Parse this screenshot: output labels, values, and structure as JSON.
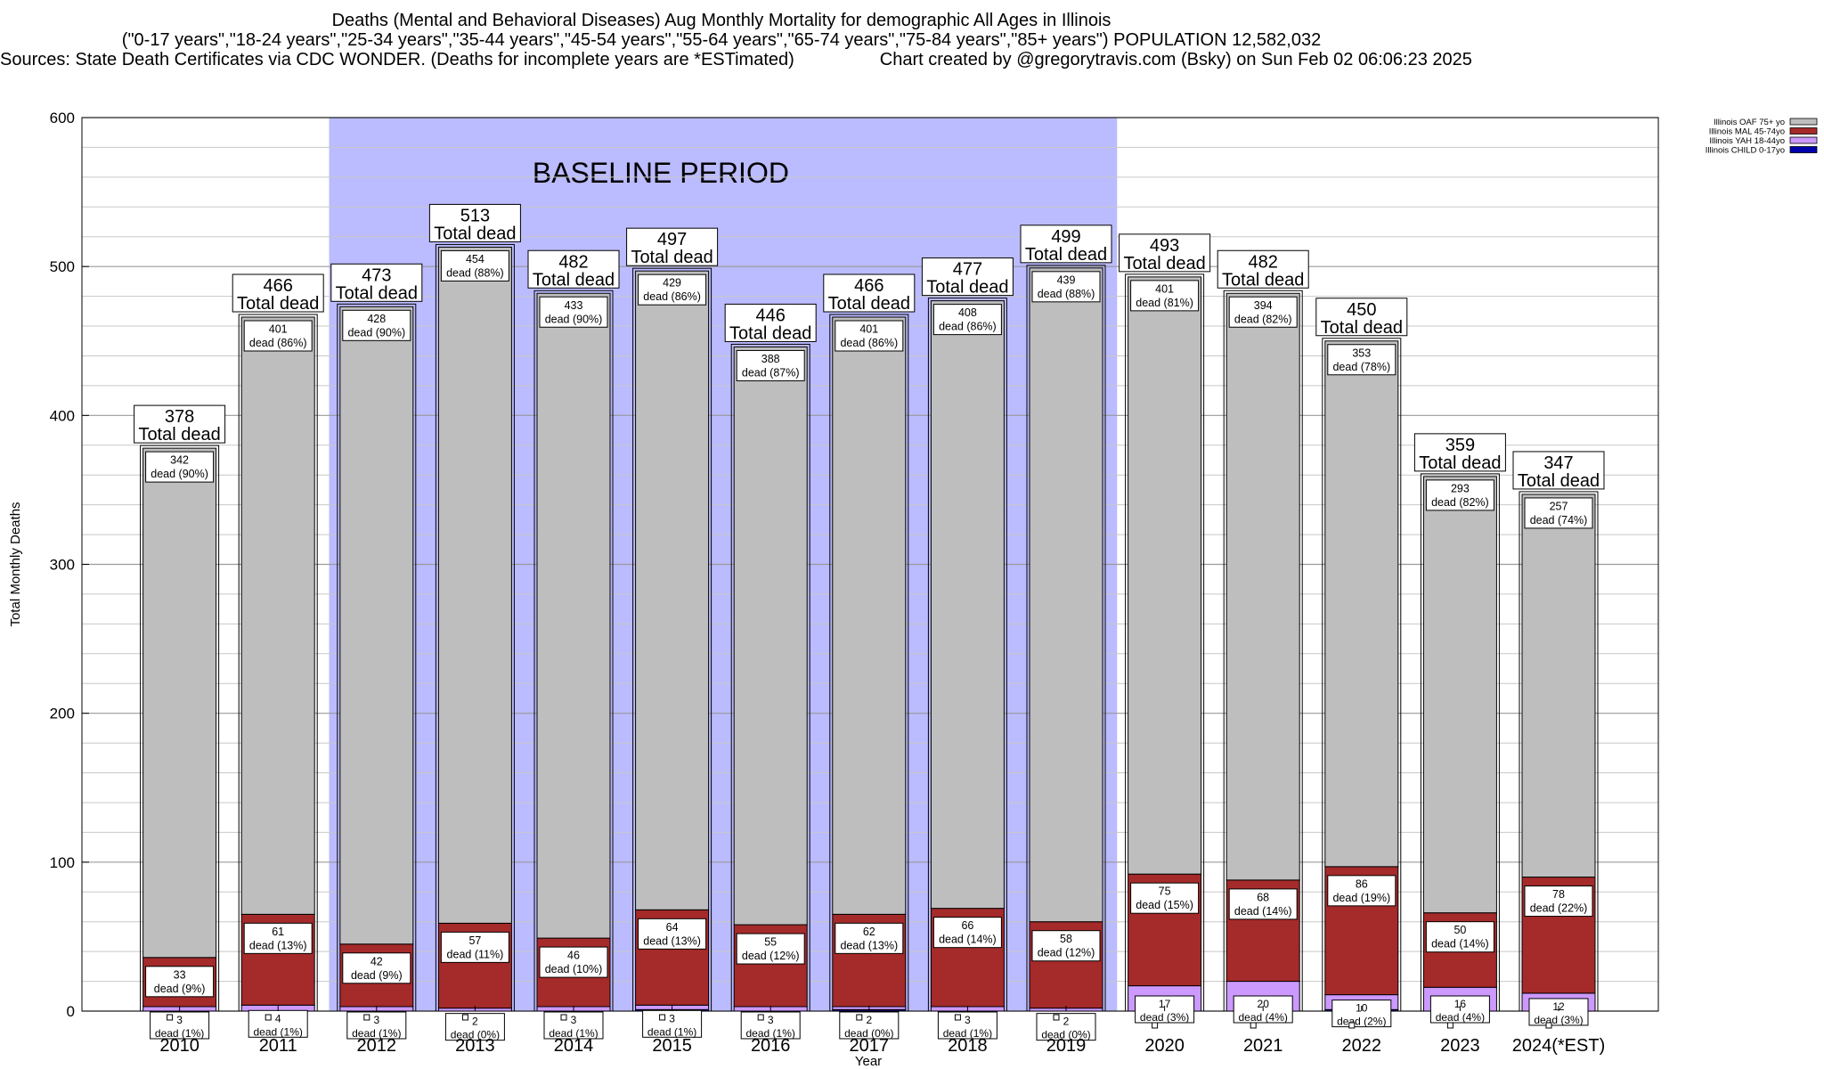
{
  "header": {
    "title_line1": "Deaths (Mental and Behavioral Diseases) Aug Monthly Mortality for demographic All Ages in Illinois",
    "title_line2": "(\"0-17 years\",\"18-24 years\",\"25-34 years\",\"35-44 years\",\"45-54 years\",\"55-64 years\",\"65-74 years\",\"75-84 years\",\"85+ years\") POPULATION 12,582,032",
    "sources": "Sources: State Death Certificates via CDC WONDER. (Deaths for incomplete years are *ESTimated)",
    "credit": "Chart created by @gregorytravis.com (Bsky) on Sun Feb 02 06:06:23 2025"
  },
  "chart_data": {
    "type": "bar",
    "stacked": true,
    "xlabel": "Year",
    "ylabel": "Total Monthly Deaths",
    "ylim": [
      0,
      600
    ],
    "yticks": [
      0,
      100,
      200,
      300,
      400,
      500,
      600
    ],
    "grid": true,
    "legend_position": "top-right",
    "baseline": {
      "label": "BASELINE PERIOD",
      "from": "2012",
      "to": "2019",
      "color": "#bbbbff"
    },
    "categories": [
      "2010",
      "2011",
      "2012",
      "2013",
      "2014",
      "2015",
      "2016",
      "2017",
      "2018",
      "2019",
      "2020",
      "2021",
      "2022",
      "2023",
      "2024(*EST)"
    ],
    "totals": [
      378,
      466,
      473,
      513,
      482,
      497,
      446,
      466,
      477,
      499,
      493,
      482,
      450,
      359,
      347
    ],
    "total_suffix": "Total dead",
    "dead_word": "dead",
    "series": [
      {
        "name": "Illinois CHILD 0-17yo",
        "color": "#0000aa",
        "values": [
          0,
          0,
          0,
          0,
          0,
          1,
          0,
          1,
          0,
          0,
          0,
          0,
          1,
          0,
          0
        ],
        "percents": []
      },
      {
        "name": "Illinois YAH 18-44yo",
        "color": "#cc99ff",
        "values": [
          3,
          4,
          3,
          2,
          3,
          3,
          3,
          2,
          3,
          2,
          17,
          20,
          10,
          16,
          12
        ],
        "percents": [
          "1%",
          "1%",
          "1%",
          "0%",
          "1%",
          "1%",
          "1%",
          "0%",
          "1%",
          "0%",
          "3%",
          "4%",
          "2%",
          "4%",
          "3%"
        ]
      },
      {
        "name": "Illinois MAL 45-74yo",
        "color": "#a52a2a",
        "values": [
          33,
          61,
          42,
          57,
          46,
          64,
          55,
          62,
          66,
          58,
          75,
          68,
          86,
          50,
          78
        ],
        "percents": [
          "9%",
          "13%",
          "9%",
          "11%",
          "10%",
          "13%",
          "12%",
          "13%",
          "14%",
          "12%",
          "15%",
          "14%",
          "19%",
          "14%",
          "22%"
        ]
      },
      {
        "name": "Illinois OAF 75+ yo",
        "color": "#bebebe",
        "values": [
          342,
          401,
          428,
          454,
          433,
          429,
          388,
          401,
          408,
          439,
          401,
          394,
          353,
          293,
          257
        ],
        "percents": [
          "90%",
          "86%",
          "90%",
          "88%",
          "90%",
          "86%",
          "87%",
          "86%",
          "86%",
          "88%",
          "81%",
          "82%",
          "78%",
          "82%",
          "74%"
        ]
      }
    ],
    "legend_order": [
      "Illinois OAF 75+ yo",
      "Illinois MAL 45-74yo",
      "Illinois YAH 18-44yo",
      "Illinois CHILD 0-17yo"
    ]
  }
}
